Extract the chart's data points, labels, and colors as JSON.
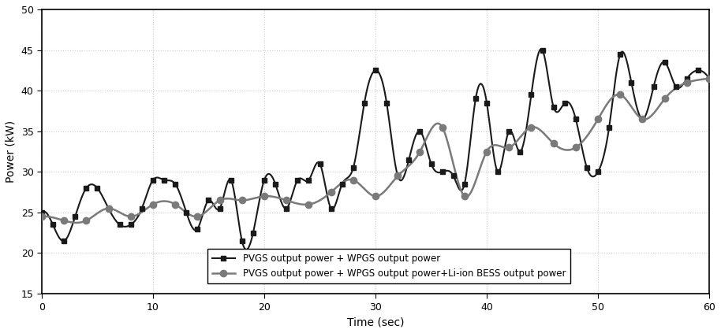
{
  "title": "",
  "xlabel": "Time (sec)",
  "ylabel": "Power (kW)",
  "xlim": [
    0,
    60
  ],
  "ylim": [
    15,
    50
  ],
  "yticks": [
    15,
    20,
    25,
    30,
    35,
    40,
    45,
    50
  ],
  "xticks": [
    0,
    10,
    20,
    30,
    40,
    50,
    60
  ],
  "line1_label": "PVGS output power + WPGS output power",
  "line2_label": "PVGS output power + WPGS output power+Li-ion BESS output power",
  "line1_color": "#1a1a1a",
  "line2_color": "#7a7a7a",
  "line1_x": [
    0,
    1,
    2,
    3,
    4,
    5,
    6,
    7,
    8,
    9,
    10,
    11,
    12,
    13,
    14,
    15,
    16,
    17,
    18,
    19,
    20,
    21,
    22,
    23,
    24,
    25,
    26,
    27,
    28,
    29,
    30,
    31,
    32,
    33,
    34,
    35,
    36,
    37,
    38,
    39,
    40,
    41,
    42,
    43,
    44,
    45,
    46,
    47,
    48,
    49,
    50,
    51,
    52,
    53,
    54,
    55,
    56,
    57,
    58,
    59,
    60
  ],
  "line1_y": [
    25.0,
    23.5,
    21.5,
    24.5,
    28.0,
    28.0,
    25.5,
    23.5,
    23.5,
    25.5,
    29.0,
    29.0,
    28.5,
    25.0,
    23.0,
    26.5,
    25.5,
    29.0,
    21.5,
    22.5,
    29.0,
    28.5,
    25.5,
    29.0,
    29.0,
    31.0,
    25.5,
    28.5,
    30.5,
    38.5,
    42.5,
    38.5,
    29.5,
    31.5,
    35.0,
    31.0,
    30.0,
    29.5,
    28.5,
    39.0,
    38.5,
    30.0,
    35.0,
    32.5,
    39.5,
    45.0,
    38.0,
    38.5,
    36.5,
    30.5,
    30.0,
    35.5,
    44.5,
    41.0,
    36.5,
    40.5,
    43.5,
    40.5,
    41.5,
    42.5,
    41.5
  ],
  "line2_x": [
    0,
    2,
    4,
    6,
    8,
    10,
    12,
    14,
    16,
    18,
    20,
    22,
    24,
    26,
    28,
    30,
    32,
    34,
    36,
    38,
    40,
    42,
    44,
    46,
    48,
    50,
    52,
    54,
    56,
    58,
    60
  ],
  "line2_y": [
    24.5,
    24.0,
    24.0,
    25.5,
    24.5,
    26.0,
    26.0,
    24.5,
    26.5,
    26.5,
    27.0,
    26.5,
    26.0,
    27.5,
    29.0,
    27.0,
    29.5,
    32.5,
    35.5,
    27.0,
    32.5,
    33.0,
    35.5,
    33.5,
    33.0,
    36.5,
    39.5,
    36.5,
    39.0,
    41.0,
    41.5
  ],
  "grid_color": "#cccccc",
  "background_color": "#ffffff",
  "fig_width": 9.14,
  "fig_height": 4.23,
  "dpi": 100
}
